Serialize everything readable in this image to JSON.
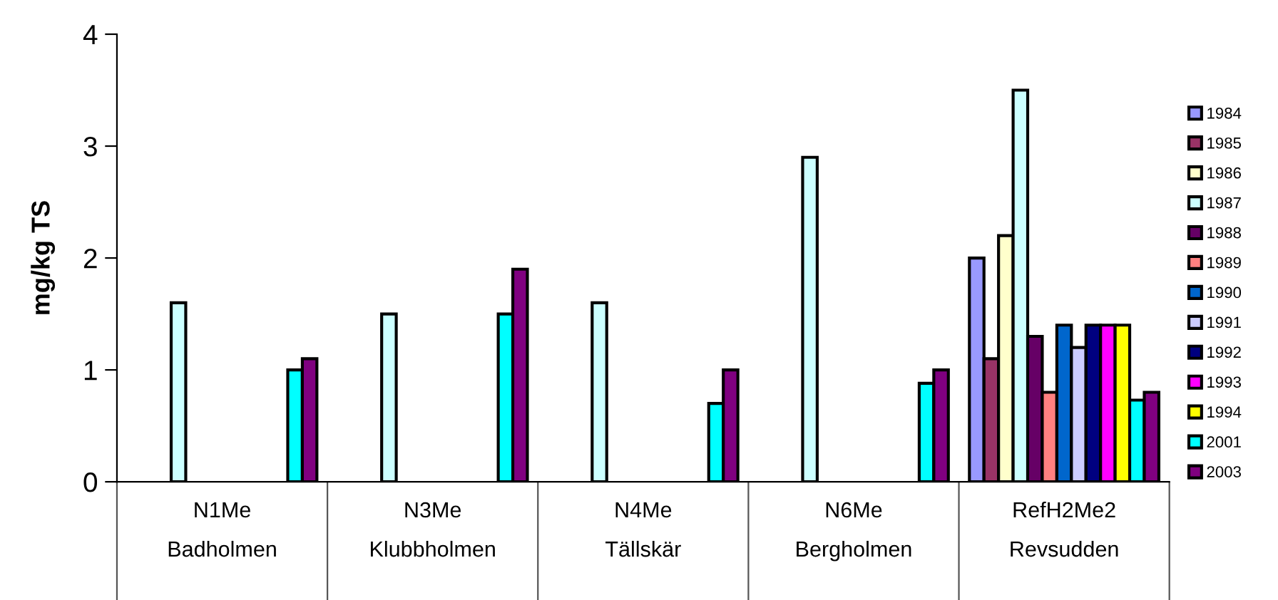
{
  "chart_data": {
    "type": "bar",
    "ylabel": "mg/kg TS",
    "categories": [
      "N1Me\nBadholmen",
      "N3Me\nKlubbholmen",
      "N4Me\nTällskär",
      "N6Me\nBergholmen",
      "RefH2Me2\nRevsudden"
    ],
    "ylim": [
      0,
      4
    ],
    "yticks": [
      0,
      1,
      2,
      3,
      4
    ],
    "grid": false,
    "legend": "right",
    "series": [
      {
        "name": "1984",
        "color": "#9999ff",
        "values": [
          null,
          null,
          null,
          null,
          2.0
        ]
      },
      {
        "name": "1985",
        "color": "#993366",
        "values": [
          null,
          null,
          null,
          null,
          1.1
        ]
      },
      {
        "name": "1986",
        "color": "#ffffcc",
        "values": [
          null,
          null,
          null,
          null,
          2.2
        ]
      },
      {
        "name": "1987",
        "color": "#ccffff",
        "values": [
          1.6,
          1.5,
          1.6,
          2.9,
          3.5
        ]
      },
      {
        "name": "1988",
        "color": "#660066",
        "values": [
          null,
          null,
          null,
          null,
          1.3
        ]
      },
      {
        "name": "1989",
        "color": "#ff8080",
        "values": [
          null,
          null,
          null,
          null,
          0.8
        ]
      },
      {
        "name": "1990",
        "color": "#0066cc",
        "values": [
          null,
          null,
          null,
          null,
          1.4
        ]
      },
      {
        "name": "1991",
        "color": "#ccccff",
        "values": [
          null,
          null,
          null,
          null,
          1.2
        ]
      },
      {
        "name": "1992",
        "color": "#000080",
        "values": [
          null,
          null,
          null,
          null,
          1.4
        ]
      },
      {
        "name": "1993",
        "color": "#ff00ff",
        "values": [
          null,
          null,
          null,
          null,
          1.4
        ]
      },
      {
        "name": "1994",
        "color": "#ffff00",
        "values": [
          null,
          null,
          null,
          null,
          1.4
        ]
      },
      {
        "name": "2001",
        "color": "#00ffff",
        "values": [
          1.0,
          1.5,
          0.7,
          0.88,
          0.73
        ]
      },
      {
        "name": "2003",
        "color": "#800080",
        "values": [
          1.1,
          1.9,
          1.0,
          1.0,
          0.8
        ]
      }
    ]
  }
}
